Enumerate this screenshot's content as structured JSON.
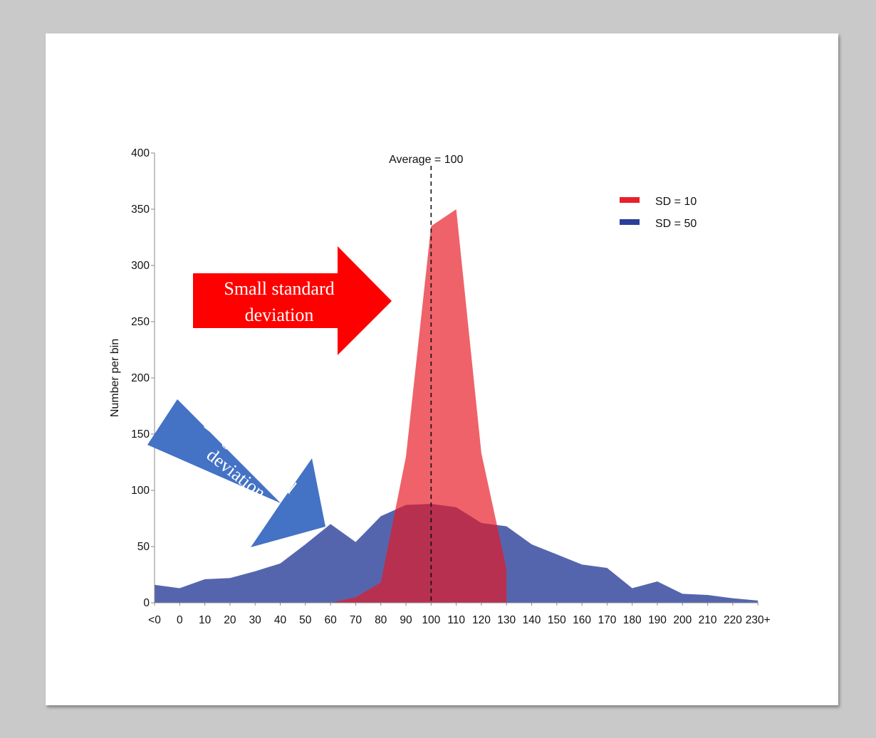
{
  "chart_data": {
    "type": "area",
    "categories": [
      "<0",
      "0",
      "10",
      "20",
      "30",
      "40",
      "50",
      "60",
      "70",
      "80",
      "90",
      "100",
      "110",
      "120",
      "130",
      "140",
      "150",
      "160",
      "170",
      "180",
      "190",
      "200",
      "210",
      "220",
      "230+"
    ],
    "series": [
      {
        "name": "SD = 50",
        "color": "#2a3f99",
        "values": [
          16,
          13,
          21,
          22,
          28,
          35,
          52,
          70,
          54,
          77,
          87,
          88,
          85,
          71,
          68,
          52,
          43,
          34,
          31,
          13,
          19,
          8,
          7,
          4,
          2
        ]
      },
      {
        "name": "SD = 10",
        "color": "#ee2c35",
        "values": [
          0,
          0,
          0,
          0,
          0,
          0,
          0,
          0,
          5,
          18,
          130,
          335,
          350,
          133,
          30,
          0,
          0,
          0,
          0,
          0,
          0,
          0,
          0,
          0,
          0
        ]
      }
    ],
    "ylabel": "Number per bin",
    "xlabel": "",
    "ylim": [
      0,
      400
    ],
    "yticks": [
      0,
      50,
      100,
      150,
      200,
      250,
      300,
      350,
      400
    ],
    "grid": false,
    "legend": "top-right",
    "reference_line": {
      "x": "100",
      "label": "Average = 100",
      "style": "dashed"
    },
    "annotations": [
      {
        "text_line1": "Small standard",
        "text_line2": "deviation",
        "color": "#ff0000",
        "points_to": "SD = 10"
      },
      {
        "text_line1": "Large standard",
        "text_line2": "deviation",
        "color": "#4472c4",
        "points_to": "SD = 50"
      }
    ]
  }
}
